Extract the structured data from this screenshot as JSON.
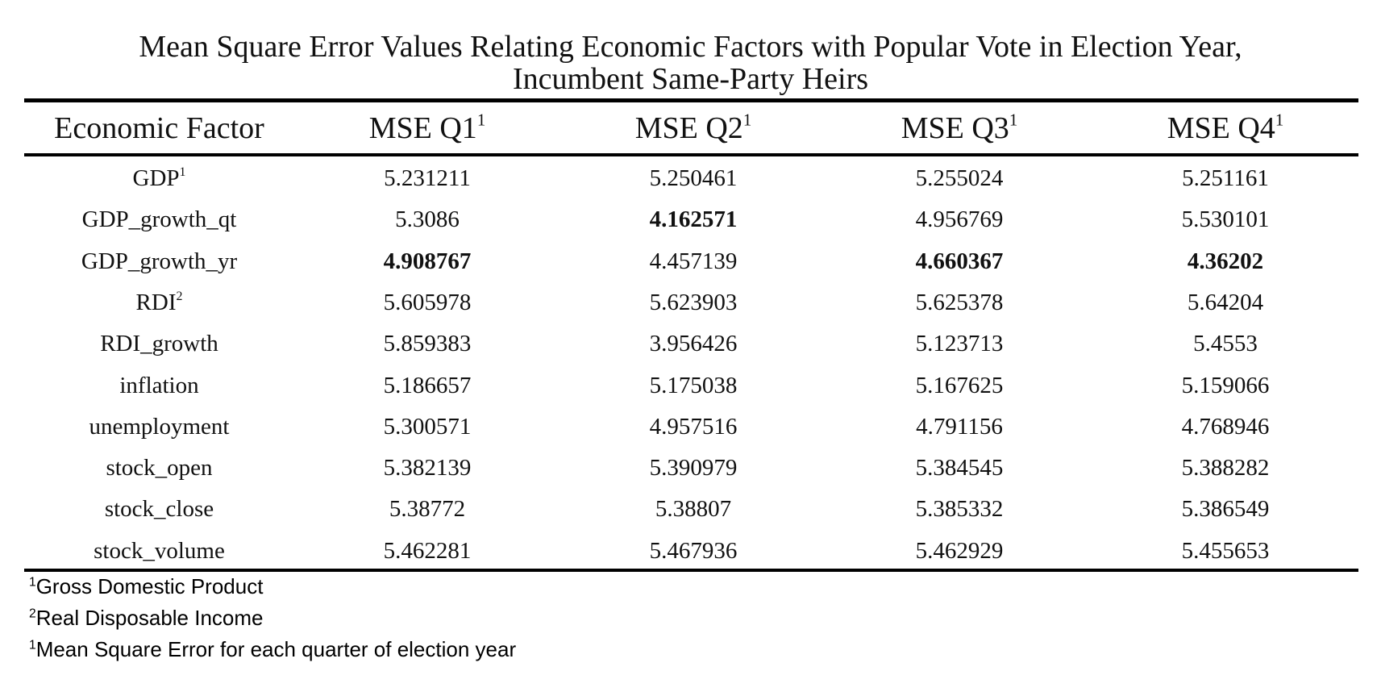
{
  "title": {
    "line1": "Mean Square Error Values Relating Economic Factors with Popular Vote in Election Year,",
    "line2": "Incumbent Same-Party Heirs"
  },
  "table": {
    "headers": [
      {
        "label": "Economic Factor",
        "sup": ""
      },
      {
        "label": "MSE Q1",
        "sup": "1"
      },
      {
        "label": "MSE Q2",
        "sup": "1"
      },
      {
        "label": "MSE Q3",
        "sup": "1"
      },
      {
        "label": "MSE Q4",
        "sup": "1"
      }
    ],
    "rows": [
      {
        "factor": "GDP",
        "sup": "1",
        "values": [
          "5.231211",
          "5.250461",
          "5.255024",
          "5.251161"
        ],
        "bold": [
          false,
          false,
          false,
          false
        ]
      },
      {
        "factor": "GDP_growth_qt",
        "sup": "",
        "values": [
          "5.3086",
          "4.162571",
          "4.956769",
          "5.530101"
        ],
        "bold": [
          false,
          true,
          false,
          false
        ]
      },
      {
        "factor": "GDP_growth_yr",
        "sup": "",
        "values": [
          "4.908767",
          "4.457139",
          "4.660367",
          "4.36202"
        ],
        "bold": [
          true,
          false,
          true,
          true
        ]
      },
      {
        "factor": "RDI",
        "sup": "2",
        "values": [
          "5.605978",
          "5.623903",
          "5.625378",
          "5.64204"
        ],
        "bold": [
          false,
          false,
          false,
          false
        ]
      },
      {
        "factor": "RDI_growth",
        "sup": "",
        "values": [
          "5.859383",
          "3.956426",
          "5.123713",
          "5.4553"
        ],
        "bold": [
          false,
          false,
          false,
          false
        ]
      },
      {
        "factor": "inflation",
        "sup": "",
        "values": [
          "5.186657",
          "5.175038",
          "5.167625",
          "5.159066"
        ],
        "bold": [
          false,
          false,
          false,
          false
        ]
      },
      {
        "factor": "unemployment",
        "sup": "",
        "values": [
          "5.300571",
          "4.957516",
          "4.791156",
          "4.768946"
        ],
        "bold": [
          false,
          false,
          false,
          false
        ]
      },
      {
        "factor": "stock_open",
        "sup": "",
        "values": [
          "5.382139",
          "5.390979",
          "5.384545",
          "5.388282"
        ],
        "bold": [
          false,
          false,
          false,
          false
        ]
      },
      {
        "factor": "stock_close",
        "sup": "",
        "values": [
          "5.38772",
          "5.38807",
          "5.385332",
          "5.386549"
        ],
        "bold": [
          false,
          false,
          false,
          false
        ]
      },
      {
        "factor": "stock_volume",
        "sup": "",
        "values": [
          "5.462281",
          "5.467936",
          "5.462929",
          "5.455653"
        ],
        "bold": [
          false,
          false,
          false,
          false
        ]
      }
    ]
  },
  "footnotes": [
    {
      "sup": "1",
      "text": "Gross Domestic Product"
    },
    {
      "sup": "2",
      "text": "Real Disposable Income"
    },
    {
      "sup": "1",
      "text": "Mean Square Error for each quarter of election year"
    }
  ]
}
